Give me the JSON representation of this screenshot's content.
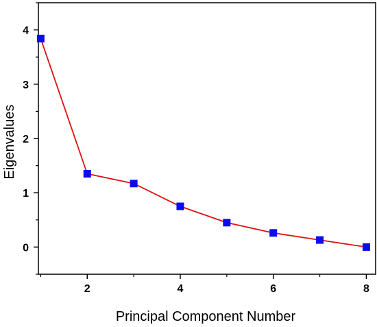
{
  "chart_data": {
    "type": "line",
    "xlabel": "Principal Component Number",
    "ylabel": "Eigenvalues",
    "x": [
      1,
      2,
      3,
      4,
      5,
      6,
      7,
      8
    ],
    "series": [
      {
        "values": [
          3.84,
          1.35,
          1.17,
          0.75,
          0.45,
          0.26,
          0.13,
          0.0
        ]
      }
    ],
    "xlim": [
      0.95,
      8.2
    ],
    "ylim": [
      -0.5,
      4.5
    ],
    "xticks": [
      2,
      4,
      6,
      8
    ],
    "xtick_labels": [
      "2",
      "4",
      "6",
      "8"
    ],
    "yticks": [
      0,
      1,
      2,
      3,
      4
    ],
    "ytick_labels": [
      "0",
      "1",
      "2",
      "3",
      "4"
    ],
    "grid": false,
    "line_color": "#dd1111",
    "marker_color": "#0b0bef",
    "marker": "square"
  }
}
